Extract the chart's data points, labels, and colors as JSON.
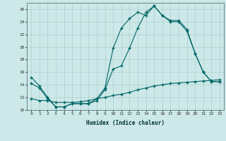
{
  "xlabel": "Humidex (Indice chaleur)",
  "bg_color": "#cde8e8",
  "line_color": "#006666",
  "grid_color": "#aecfcf",
  "xlim": [
    -0.5,
    23.5
  ],
  "ylim": [
    10,
    27
  ],
  "yticks": [
    10,
    12,
    14,
    16,
    18,
    20,
    22,
    24,
    26
  ],
  "xticks": [
    0,
    1,
    2,
    3,
    4,
    5,
    6,
    7,
    8,
    9,
    10,
    11,
    12,
    13,
    14,
    15,
    16,
    17,
    18,
    19,
    20,
    21,
    22,
    23
  ],
  "line1_x": [
    0,
    1,
    2,
    3,
    4,
    5,
    6,
    7,
    8,
    9,
    10,
    11,
    12,
    13,
    14,
    15,
    16,
    17,
    18,
    19,
    20,
    21,
    22,
    23
  ],
  "line1_y": [
    15.2,
    13.8,
    12.0,
    10.5,
    10.5,
    11.0,
    11.0,
    11.0,
    11.8,
    13.5,
    19.8,
    23.0,
    24.5,
    25.5,
    25.0,
    26.5,
    25.0,
    24.0,
    24.0,
    22.5,
    19.0,
    16.0,
    14.5,
    14.5
  ],
  "line2_x": [
    0,
    1,
    2,
    3,
    4,
    5,
    6,
    7,
    8,
    9,
    10,
    11,
    12,
    13,
    14,
    15,
    16,
    17,
    18,
    19,
    20,
    21,
    22,
    23
  ],
  "line2_y": [
    14.2,
    13.5,
    11.8,
    10.5,
    10.5,
    11.0,
    11.0,
    11.0,
    11.5,
    13.2,
    16.5,
    17.0,
    19.8,
    23.0,
    25.5,
    26.5,
    25.0,
    24.2,
    24.2,
    22.8,
    19.0,
    16.0,
    14.5,
    14.5
  ],
  "line3_x": [
    0,
    1,
    2,
    3,
    4,
    5,
    6,
    7,
    8,
    9,
    10,
    11,
    12,
    13,
    14,
    15,
    16,
    17,
    18,
    19,
    20,
    21,
    22,
    23
  ],
  "line3_y": [
    11.8,
    11.5,
    11.5,
    11.2,
    11.2,
    11.2,
    11.3,
    11.5,
    11.8,
    12.0,
    12.3,
    12.5,
    12.8,
    13.2,
    13.5,
    13.8,
    14.0,
    14.2,
    14.3,
    14.4,
    14.5,
    14.6,
    14.7,
    14.8
  ]
}
